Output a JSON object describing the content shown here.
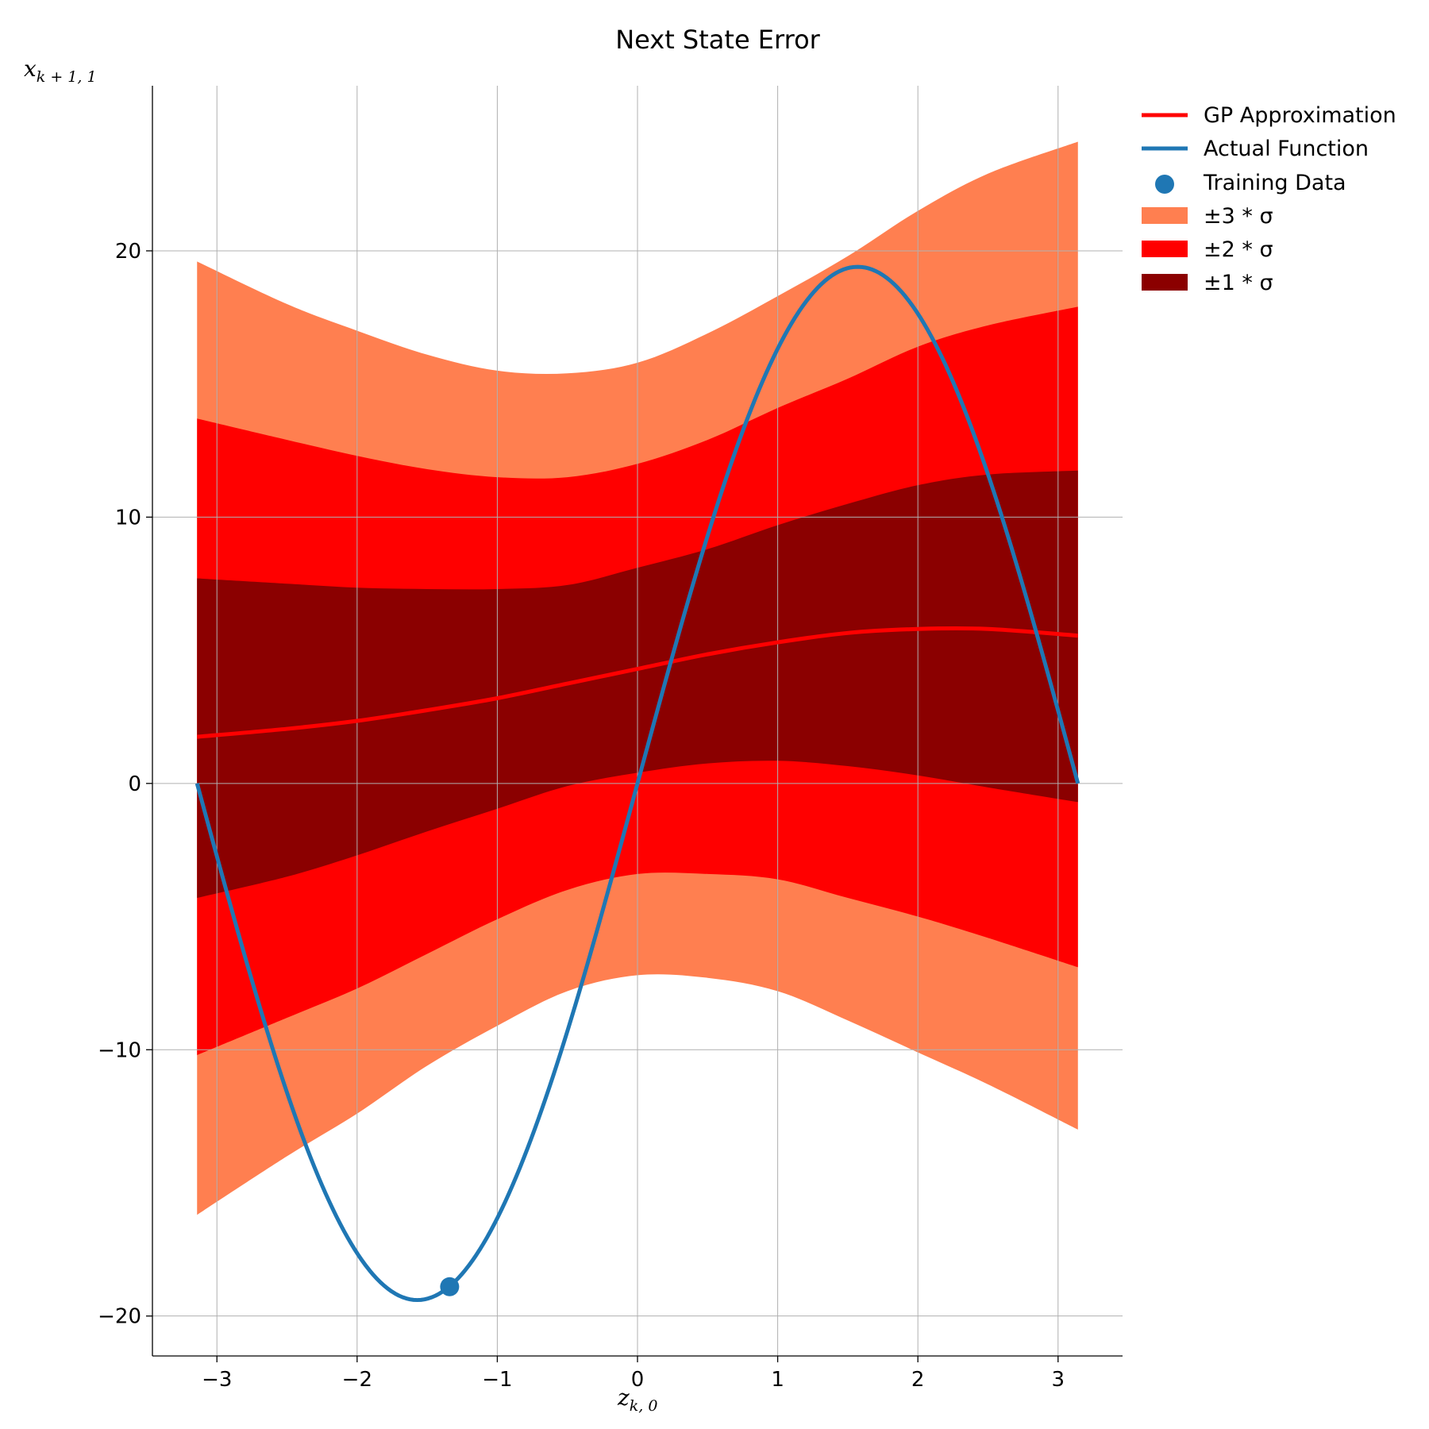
{
  "chart_data": {
    "type": "line",
    "title": "Next State Error",
    "xlabel": {
      "main": "z",
      "sub": "k, 0"
    },
    "ylabel": {
      "main": "x",
      "sub": "k + 1, 1"
    },
    "xlim": [
      -3.46,
      3.46
    ],
    "ylim": [
      -21.5,
      26.2
    ],
    "xticks": [
      -3,
      -2,
      -1,
      0,
      1,
      2,
      3
    ],
    "xtick_labels": [
      "−3",
      "−2",
      "−1",
      "0",
      "1",
      "2",
      "3"
    ],
    "yticks": [
      -20,
      -10,
      0,
      10,
      20
    ],
    "ytick_labels": [
      "−20",
      "−10",
      "0",
      "10",
      "20"
    ],
    "grid": true,
    "legend_position": "outside-top-right",
    "x": [
      -3.1416,
      -2.5,
      -2.0,
      -1.5,
      -1.0,
      -0.5,
      0.0,
      0.5,
      1.0,
      1.5,
      2.0,
      2.5,
      3.1416
    ],
    "series": [
      {
        "name": "GP Approximation",
        "kind": "line",
        "color": "#ff0000",
        "values": [
          1.75,
          2.05,
          2.35,
          2.75,
          3.2,
          3.75,
          4.3,
          4.85,
          5.3,
          5.65,
          5.8,
          5.8,
          5.55
        ]
      },
      {
        "name": "Actual Function",
        "kind": "function",
        "formula": "19.4*sin(x)",
        "color": "#1f77b4",
        "x_range": [
          -3.1416,
          3.1416
        ]
      },
      {
        "name": "Training Data",
        "kind": "scatter",
        "color": "#1f77b4",
        "points": [
          [
            -1.34,
            -18.9
          ]
        ]
      },
      {
        "name": "±3 * σ",
        "kind": "band",
        "color": "#ff7f50",
        "upper": [
          19.6,
          18.0,
          17.0,
          16.1,
          15.5,
          15.4,
          15.8,
          16.9,
          18.3,
          19.8,
          21.5,
          22.9,
          24.1
        ],
        "lower": [
          -16.2,
          -14.0,
          -12.4,
          -10.6,
          -9.1,
          -7.8,
          -7.2,
          -7.3,
          -7.8,
          -8.9,
          -10.1,
          -11.3,
          -13.0
        ]
      },
      {
        "name": "±2 * σ",
        "kind": "band",
        "color": "#ff0000",
        "upper": [
          13.7,
          12.9,
          12.3,
          11.8,
          11.5,
          11.5,
          12.0,
          12.9,
          14.1,
          15.2,
          16.4,
          17.2,
          17.9
        ],
        "lower": [
          -10.2,
          -8.8,
          -7.7,
          -6.4,
          -5.1,
          -4.0,
          -3.4,
          -3.4,
          -3.6,
          -4.3,
          -5.0,
          -5.8,
          -6.9
        ]
      },
      {
        "name": "±1 * σ",
        "kind": "band",
        "color": "#8b0000",
        "upper": [
          7.7,
          7.5,
          7.35,
          7.3,
          7.3,
          7.45,
          8.1,
          8.8,
          9.7,
          10.5,
          11.2,
          11.6,
          11.75
        ],
        "lower": [
          -4.3,
          -3.5,
          -2.7,
          -1.8,
          -0.95,
          -0.1,
          0.4,
          0.75,
          0.85,
          0.65,
          0.3,
          -0.15,
          -0.7
        ]
      }
    ]
  }
}
